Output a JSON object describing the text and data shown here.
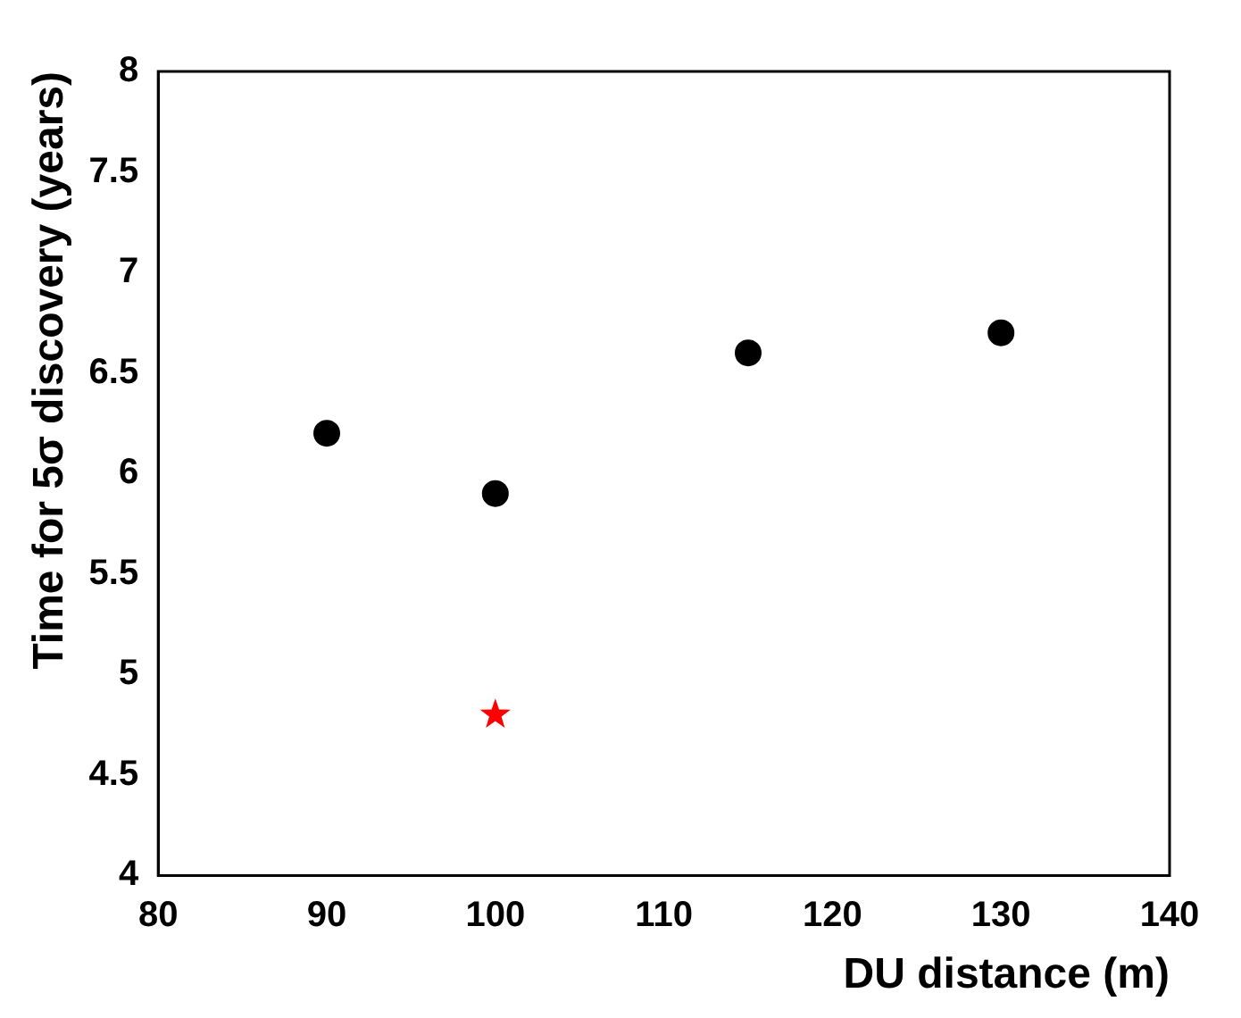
{
  "chart_data": {
    "type": "scatter",
    "xlabel": "DU distance (m)",
    "ylabel": "Time for 5σ discovery (years)",
    "xlim": [
      80,
      140
    ],
    "xticks": [
      80,
      90,
      100,
      110,
      120,
      130,
      140
    ],
    "ylim": [
      4,
      8
    ],
    "yticks": [
      4,
      4.5,
      5,
      5.5,
      6,
      6.5,
      7,
      7.5,
      8
    ],
    "grid": false,
    "legend": false,
    "series": [
      {
        "color": "#000000",
        "marker": "circle",
        "x": [
          90,
          100,
          115,
          130
        ],
        "values": [
          6.2,
          5.9,
          6.6,
          6.7
        ]
      },
      {
        "color": "#ff0000",
        "marker": "star",
        "x": [
          100
        ],
        "values": [
          4.8
        ]
      }
    ]
  }
}
